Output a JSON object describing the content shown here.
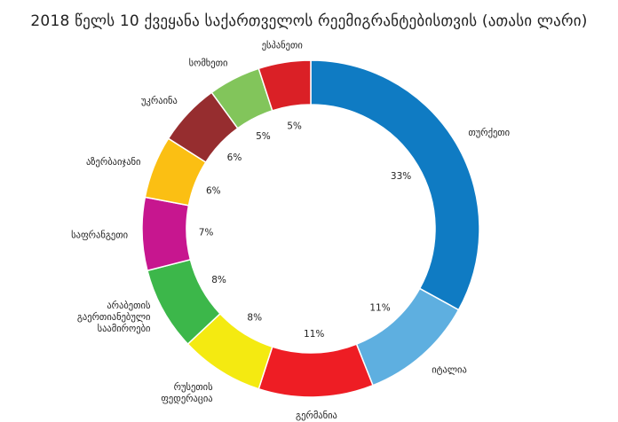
{
  "chart_data": {
    "type": "pie",
    "title": "2018 წელს 10 ქვეყანა საქართველოს რეემიგრანტებისთვის (ათასი ლარი)",
    "categories": [
      "თურქეთი",
      "იტალია",
      "გერმანია",
      "რუსეთის ფედერაცია",
      "არაბეთის გაერთიანებული საამიროები",
      "საფრანგეთი",
      "აზერბაიჯანი",
      "უკრაინა",
      "სომხეთი",
      "ესპანეთი"
    ],
    "label_lines": [
      [
        "თურქეთი"
      ],
      [
        "იტალია"
      ],
      [
        "გერმანია"
      ],
      [
        "რუსეთის",
        "ფედერაცია"
      ],
      [
        "არაბეთის",
        "გაერთიანებული",
        "საამიროები"
      ],
      [
        "საფრანგეთი"
      ],
      [
        "აზერბაიჯანი"
      ],
      [
        "უკრაინა"
      ],
      [
        "სომხეთი"
      ],
      [
        "ესპანეთი"
      ]
    ],
    "values": [
      33,
      11,
      11,
      8,
      8,
      7,
      6,
      6,
      5,
      5
    ],
    "value_labels": [
      "33%",
      "11%",
      "11%",
      "8%",
      "8%",
      "7%",
      "6%",
      "6%",
      "5%",
      "5%"
    ],
    "colors": [
      "#0f7bc3",
      "#5eafe0",
      "#ee1d24",
      "#f4ea11",
      "#3cb74a",
      "#c7168f",
      "#fbbf13",
      "#962d2f",
      "#82c55b",
      "#da2026"
    ],
    "donut": true,
    "legend": "none"
  }
}
